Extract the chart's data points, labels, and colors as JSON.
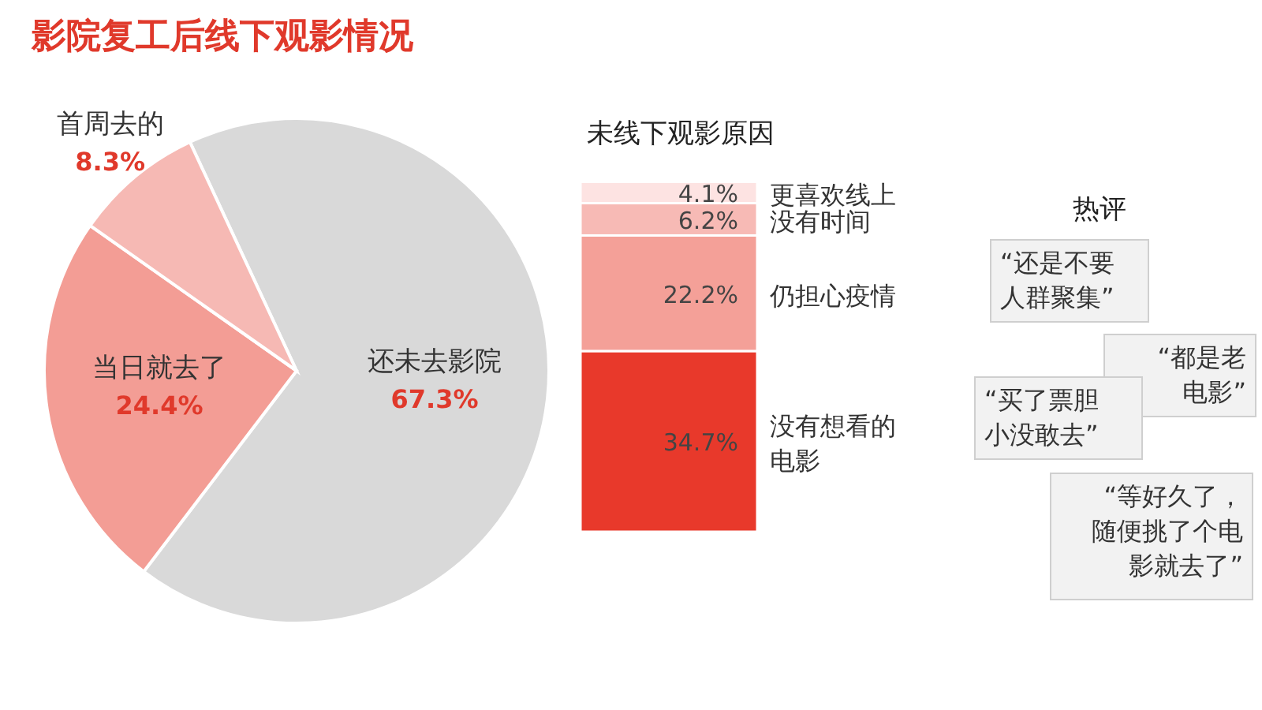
{
  "chart_data": [
    {
      "type": "pie",
      "title": "影院复工后线下观影情况",
      "categories": [
        "还未去影院",
        "当日就去了",
        "首周去的"
      ],
      "values": [
        67.3,
        24.4,
        8.3
      ],
      "colors": [
        "#d9d9d9",
        "#f39d95",
        "#f6b9b4"
      ],
      "value_labels": [
        "67.3%",
        "24.4%",
        "8.3%"
      ]
    },
    {
      "type": "bar",
      "title": "未线下观影原因",
      "categories": [
        null
      ],
      "stacked": true,
      "series": [
        {
          "name": "没有想看的电影",
          "color": "#e8392b",
          "values": [
            34.7
          ],
          "value_labels": [
            "34.7%"
          ]
        },
        {
          "name": "仍担心疫情",
          "color": "#f4a098",
          "values": [
            22.2
          ],
          "value_labels": [
            "22.2%"
          ]
        },
        {
          "name": "没有时间",
          "color": "#f7bab5",
          "values": [
            6.2
          ],
          "value_labels": [
            "6.2%"
          ]
        },
        {
          "name": "更喜欢线上",
          "color": "#fde3e2",
          "values": [
            4.1
          ],
          "value_labels": [
            "4.1%"
          ]
        }
      ]
    },
    {
      "type": "other",
      "title": "热评",
      "annotations": [
        "“还是不要人群聚集”",
        "“都是老电影”",
        "“买了票胆小没敢去”",
        "“等好久了，随便挑了个电影就去了”"
      ]
    }
  ]
}
